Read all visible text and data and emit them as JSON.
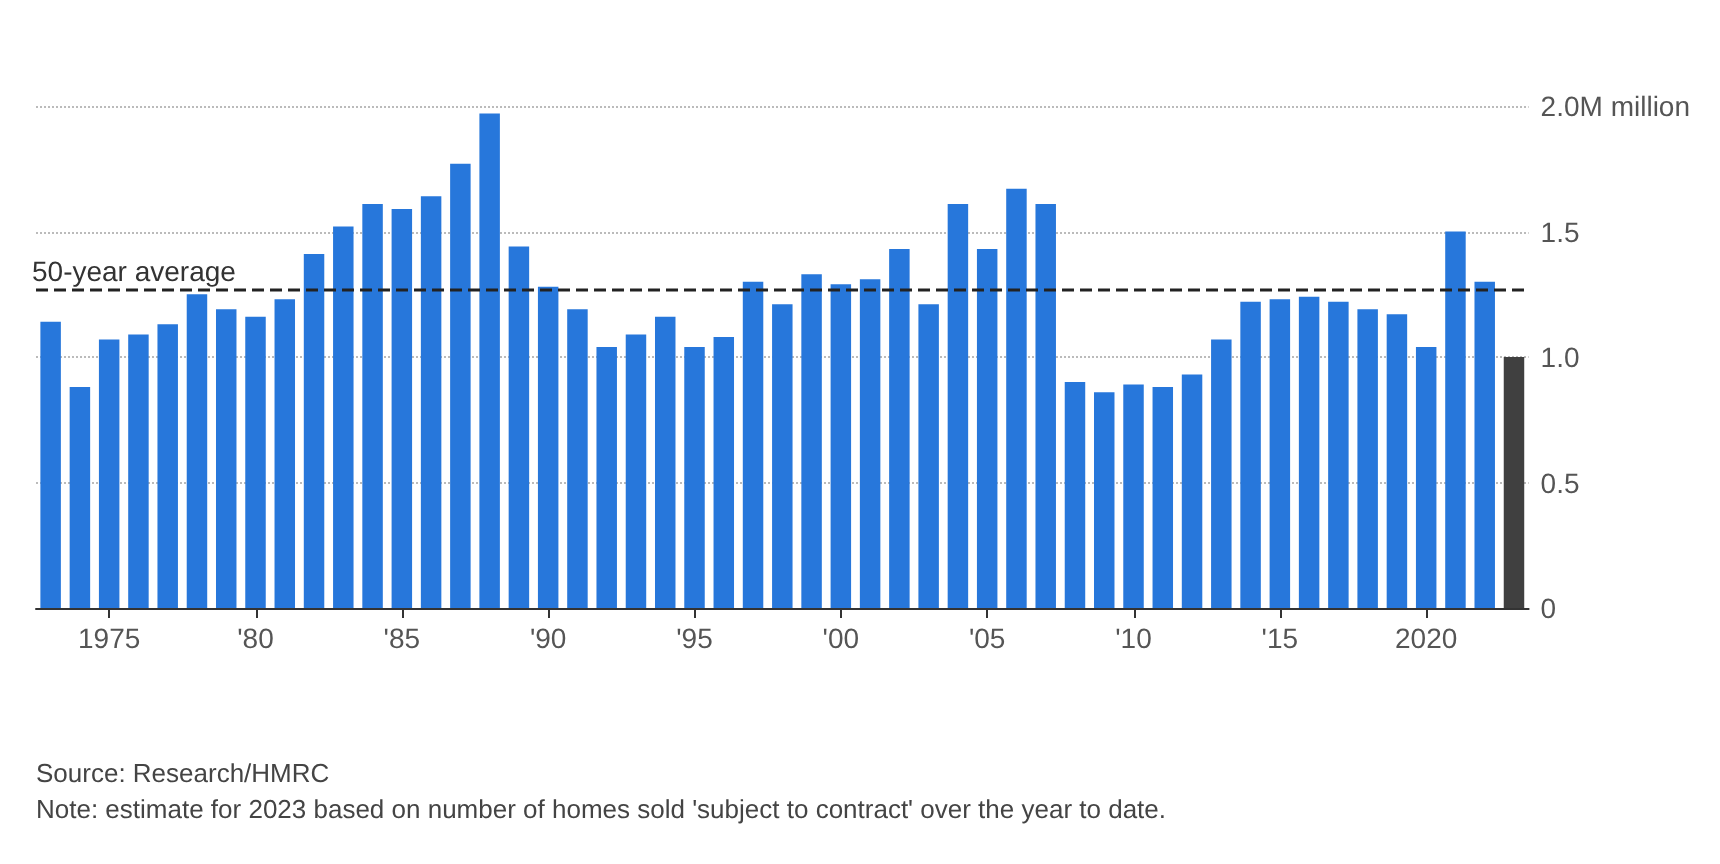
{
  "chart_data": {
    "type": "bar",
    "categories": [
      null,
      null,
      "1975",
      null,
      null,
      null,
      null,
      "'80",
      null,
      null,
      null,
      null,
      "'85",
      null,
      null,
      null,
      null,
      "'90",
      null,
      null,
      null,
      null,
      "'95",
      null,
      null,
      null,
      null,
      "'00",
      null,
      null,
      null,
      null,
      "'05",
      null,
      null,
      null,
      null,
      "'10",
      null,
      null,
      null,
      null,
      "'15",
      null,
      null,
      null,
      null,
      "2020",
      null,
      null,
      null
    ],
    "values": [
      1.14,
      0.88,
      1.07,
      1.09,
      1.13,
      1.25,
      1.19,
      1.16,
      1.23,
      1.41,
      1.52,
      1.61,
      1.59,
      1.64,
      1.77,
      1.97,
      1.44,
      1.28,
      1.19,
      1.04,
      1.09,
      1.16,
      1.04,
      1.08,
      1.3,
      1.21,
      1.33,
      1.29,
      1.31,
      1.43,
      1.21,
      1.61,
      1.43,
      1.67,
      1.61,
      0.9,
      0.86,
      0.89,
      0.88,
      0.93,
      1.07,
      1.22,
      1.23,
      1.24,
      1.22,
      1.19,
      1.17,
      1.04,
      1.5,
      1.3,
      1.0
    ],
    "colors": [
      "#2777db",
      "#2777db",
      "#2777db",
      "#2777db",
      "#2777db",
      "#2777db",
      "#2777db",
      "#2777db",
      "#2777db",
      "#2777db",
      "#2777db",
      "#2777db",
      "#2777db",
      "#2777db",
      "#2777db",
      "#2777db",
      "#2777db",
      "#2777db",
      "#2777db",
      "#2777db",
      "#2777db",
      "#2777db",
      "#2777db",
      "#2777db",
      "#2777db",
      "#2777db",
      "#2777db",
      "#2777db",
      "#2777db",
      "#2777db",
      "#2777db",
      "#2777db",
      "#2777db",
      "#2777db",
      "#2777db",
      "#2777db",
      "#2777db",
      "#2777db",
      "#2777db",
      "#2777db",
      "#2777db",
      "#2777db",
      "#2777db",
      "#2777db",
      "#2777db",
      "#2777db",
      "#2777db",
      "#2777db",
      "#2777db",
      "#2777db",
      "#404040"
    ],
    "ylim": [
      0,
      2
    ],
    "yticks": [
      0,
      0.5,
      {
        "value": 1,
        "label": "1.0"
      },
      1.5,
      {
        "value": 2,
        "label": "2.0M million"
      }
    ],
    "grid": "y",
    "ref_lines": [
      {
        "axis": "y",
        "value": 1.27,
        "label": "50-year average",
        "color": "#222222",
        "line_style": "dashed"
      }
    ],
    "annotations": [
      "Source: Research/HMRC",
      "Note: estimate for 2023 based on number of homes sold 'subject to contract' over the year to date."
    ]
  }
}
